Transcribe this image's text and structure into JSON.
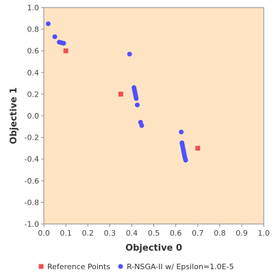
{
  "chart_data": {
    "type": "scatter",
    "xlabel": "Objective 0",
    "ylabel": "Objective 1",
    "xlim": [
      0.0,
      1.0
    ],
    "ylim": [
      -1.0,
      1.0
    ],
    "x_ticks": [
      "0.0",
      "0.1",
      "0.2",
      "0.3",
      "0.4",
      "0.5",
      "0.6",
      "0.7",
      "0.8",
      "0.9",
      "1.0"
    ],
    "y_ticks": [
      "1.0",
      "0.8",
      "0.6",
      "0.4",
      "0.2",
      "0.0",
      "-0.2",
      "-0.4",
      "-0.6",
      "-0.8",
      "-1.0"
    ],
    "grid": false,
    "legend_position": "bottom",
    "plot_background": "#ffe4c4",
    "series": [
      {
        "name": "Reference Points",
        "marker": "square",
        "color": "#f05050",
        "points": [
          {
            "x": 0.1,
            "y": 0.6
          },
          {
            "x": 0.35,
            "y": 0.2
          },
          {
            "x": 0.7,
            "y": -0.3
          }
        ]
      },
      {
        "name": "R-NSGA-II w/ Epsilon=1.0E-5",
        "marker": "circle",
        "color": "#5050ff",
        "points": [
          {
            "x": 0.02,
            "y": 0.85
          },
          {
            "x": 0.05,
            "y": 0.73
          },
          {
            "x": 0.07,
            "y": 0.68
          },
          {
            "x": 0.08,
            "y": 0.675
          },
          {
            "x": 0.09,
            "y": 0.67
          },
          {
            "x": 0.39,
            "y": 0.57
          },
          {
            "x": 0.41,
            "y": 0.26
          },
          {
            "x": 0.412,
            "y": 0.24
          },
          {
            "x": 0.414,
            "y": 0.22
          },
          {
            "x": 0.416,
            "y": 0.2
          },
          {
            "x": 0.418,
            "y": 0.18
          },
          {
            "x": 0.42,
            "y": 0.16
          },
          {
            "x": 0.425,
            "y": 0.1
          },
          {
            "x": 0.44,
            "y": -0.06
          },
          {
            "x": 0.445,
            "y": -0.09
          },
          {
            "x": 0.625,
            "y": -0.15
          },
          {
            "x": 0.628,
            "y": -0.25
          },
          {
            "x": 0.63,
            "y": -0.27
          },
          {
            "x": 0.632,
            "y": -0.29
          },
          {
            "x": 0.634,
            "y": -0.31
          },
          {
            "x": 0.636,
            "y": -0.33
          },
          {
            "x": 0.638,
            "y": -0.35
          },
          {
            "x": 0.64,
            "y": -0.37
          },
          {
            "x": 0.642,
            "y": -0.39
          },
          {
            "x": 0.645,
            "y": -0.41
          }
        ]
      }
    ]
  }
}
